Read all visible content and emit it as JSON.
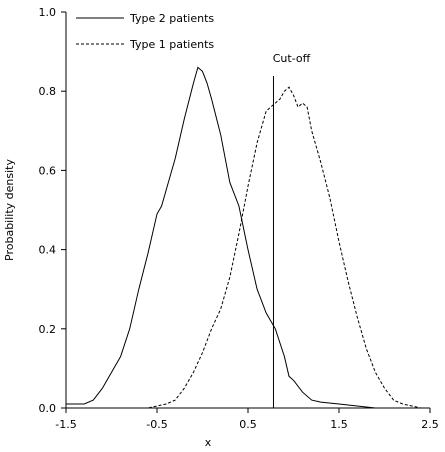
{
  "chart_data": {
    "type": "line",
    "title": "",
    "xlabel": "x",
    "ylabel": "Probability density",
    "xlim": [
      -1.5,
      2.5
    ],
    "ylim": [
      0,
      1.0
    ],
    "x_ticks": [
      -1.5,
      -0.5,
      0.5,
      1.5,
      2.5
    ],
    "x_tick_labels": [
      "-1.5",
      "-0.5",
      "0.5",
      "1.5",
      "2.5"
    ],
    "y_ticks": [
      0,
      0.2,
      0.4,
      0.6,
      0.8,
      1.0
    ],
    "y_tick_labels": [
      "0.0",
      "0.2",
      "0.4",
      "0.6",
      "0.8",
      "1.0"
    ],
    "grid": false,
    "legend_position": "top-left",
    "series": [
      {
        "name": "Type 2 patients",
        "line_style": "solid",
        "x": [
          -1.5,
          -1.3,
          -1.2,
          -1.1,
          -1.0,
          -0.9,
          -0.8,
          -0.7,
          -0.6,
          -0.5,
          -0.45,
          -0.4,
          -0.3,
          -0.2,
          -0.1,
          -0.05,
          0.0,
          0.05,
          0.1,
          0.2,
          0.3,
          0.4,
          0.5,
          0.6,
          0.7,
          0.8,
          0.9,
          0.95,
          1.0,
          1.1,
          1.2,
          1.3,
          1.5,
          1.7,
          1.9
        ],
        "values": [
          0.01,
          0.01,
          0.02,
          0.05,
          0.09,
          0.13,
          0.2,
          0.3,
          0.39,
          0.49,
          0.51,
          0.55,
          0.63,
          0.73,
          0.82,
          0.86,
          0.85,
          0.82,
          0.78,
          0.69,
          0.57,
          0.51,
          0.4,
          0.3,
          0.24,
          0.2,
          0.13,
          0.08,
          0.07,
          0.04,
          0.02,
          0.015,
          0.01,
          0.005,
          0.0
        ]
      },
      {
        "name": "Type 1 patients",
        "line_style": "dashed",
        "x": [
          -0.7,
          -0.6,
          -0.5,
          -0.4,
          -0.3,
          -0.2,
          -0.1,
          0.0,
          0.1,
          0.2,
          0.3,
          0.4,
          0.5,
          0.6,
          0.7,
          0.8,
          0.85,
          0.9,
          0.95,
          1.0,
          1.05,
          1.1,
          1.15,
          1.2,
          1.3,
          1.4,
          1.5,
          1.6,
          1.7,
          1.8,
          1.9,
          2.0,
          2.1,
          2.2,
          2.3,
          2.4
        ],
        "values": [
          0.0,
          0.0,
          0.005,
          0.01,
          0.02,
          0.05,
          0.09,
          0.14,
          0.2,
          0.25,
          0.33,
          0.44,
          0.56,
          0.67,
          0.75,
          0.77,
          0.78,
          0.8,
          0.81,
          0.79,
          0.76,
          0.77,
          0.76,
          0.7,
          0.62,
          0.53,
          0.42,
          0.32,
          0.23,
          0.15,
          0.09,
          0.05,
          0.02,
          0.01,
          0.005,
          0.0
        ]
      }
    ],
    "annotations": [
      {
        "text": "Cut-off",
        "x": 0.78
      }
    ],
    "cutoff_x": 0.78
  }
}
